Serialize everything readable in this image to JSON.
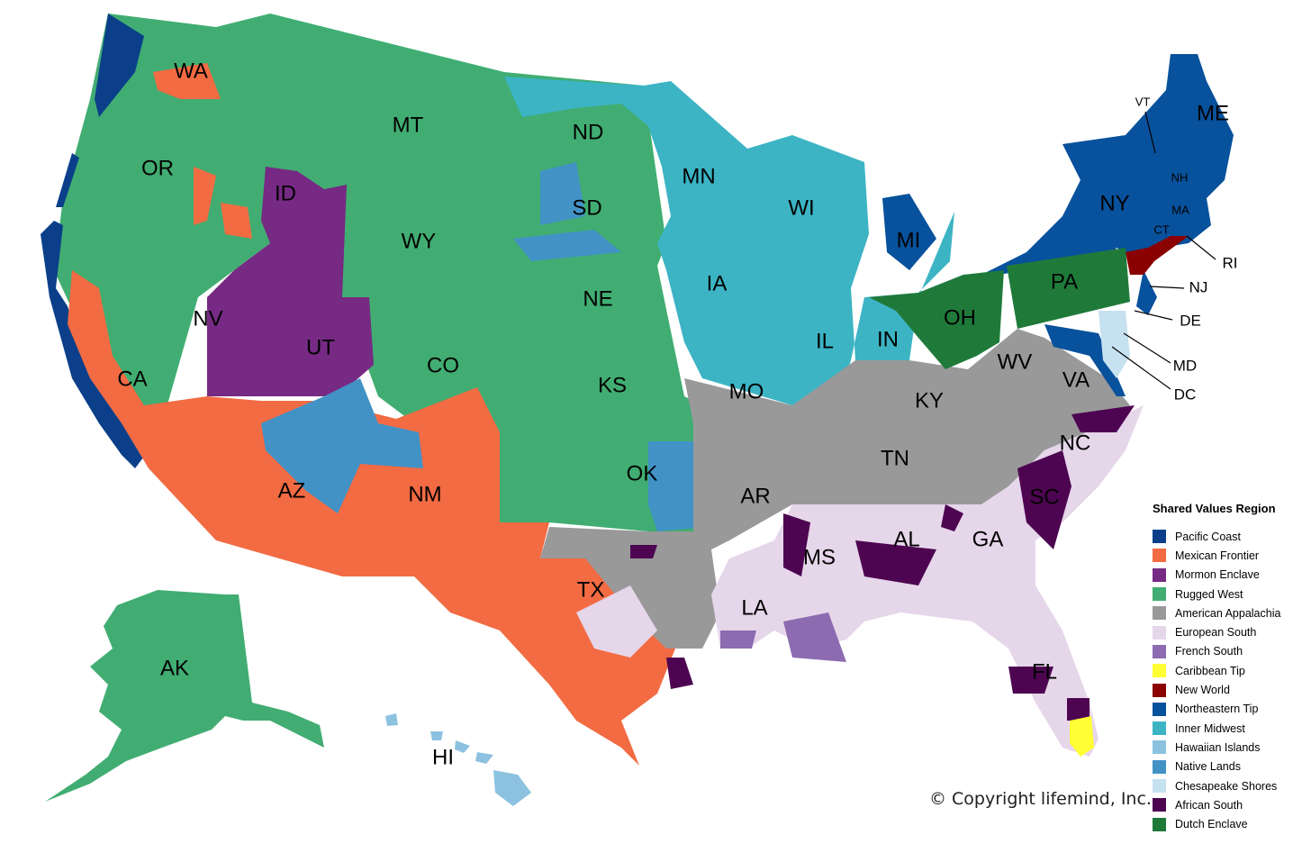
{
  "legend": {
    "title": "Shared Values Region",
    "items": [
      {
        "label": "Pacific Coast",
        "color": "#0b3f8a"
      },
      {
        "label": "Mexican Frontier",
        "color": "#f26b43"
      },
      {
        "label": "Mormon Enclave",
        "color": "#762a83"
      },
      {
        "label": "Rugged West",
        "color": "#41ad72"
      },
      {
        "label": "American Appalachia",
        "color": "#999999"
      },
      {
        "label": "European South",
        "color": "#e6d6ea"
      },
      {
        "label": "French South",
        "color": "#8c6bb1"
      },
      {
        "label": "Caribbean Tip",
        "color": "#ffff33"
      },
      {
        "label": "New World",
        "color": "#8b0000"
      },
      {
        "label": "Northeastern Tip",
        "color": "#08519c"
      },
      {
        "label": "Inner Midwest",
        "color": "#3cb4c4"
      },
      {
        "label": "Hawaiian Islands",
        "color": "#8cc2e0"
      },
      {
        "label": "Native Lands",
        "color": "#4292c6"
      },
      {
        "label": "Chesapeake Shores",
        "color": "#c6e1f0"
      },
      {
        "label": "African South",
        "color": "#4d0552"
      },
      {
        "label": "Dutch Enclave",
        "color": "#1f7a3a"
      }
    ]
  },
  "states": {
    "WA": "WA",
    "OR": "OR",
    "CA": "CA",
    "NV": "NV",
    "ID": "ID",
    "MT": "MT",
    "WY": "WY",
    "UT": "UT",
    "AZ": "AZ",
    "CO": "CO",
    "NM": "NM",
    "ND": "ND",
    "SD": "SD",
    "NE": "NE",
    "KS": "KS",
    "OK": "OK",
    "TX": "TX",
    "MN": "MN",
    "IA": "IA",
    "MO": "MO",
    "AR": "AR",
    "LA": "LA",
    "WI": "WI",
    "IL": "IL",
    "MI": "MI",
    "IN": "IN",
    "OH": "OH",
    "KY": "KY",
    "TN": "TN",
    "MS": "MS",
    "AL": "AL",
    "GA": "GA",
    "FL": "FL",
    "SC": "SC",
    "NC": "NC",
    "VA": "VA",
    "WV": "WV",
    "PA": "PA",
    "NY": "NY",
    "VT": "VT",
    "NH": "NH",
    "ME": "ME",
    "MA": "MA",
    "CT": "CT",
    "RI": "RI",
    "NJ": "NJ",
    "DE": "DE",
    "MD": "MD",
    "DC": "DC",
    "AK": "AK",
    "HI": "HI"
  },
  "copyright": "© Copyright lifemind, Inc."
}
